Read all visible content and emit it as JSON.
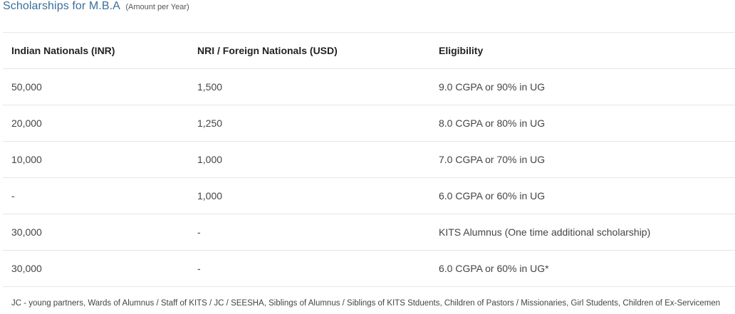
{
  "heading": {
    "title": "Scholarships for M.B.A",
    "subtitle": "(Amount per Year)"
  },
  "table": {
    "headers": [
      "Indian Nationals (INR)",
      "NRI / Foreign Nationals (USD)",
      "Eligibility"
    ],
    "rows": [
      [
        "50,000",
        "1,500",
        "9.0 CGPA or 90% in UG"
      ],
      [
        "20,000",
        "1,250",
        "8.0 CGPA or 80% in UG"
      ],
      [
        "10,000",
        "1,000",
        "7.0 CGPA or 70% in UG"
      ],
      [
        "-",
        "1,000",
        "6.0 CGPA or 60% in UG"
      ],
      [
        "30,000",
        "-",
        "KITS Alumnus (One time additional scholarship)"
      ],
      [
        "30,000",
        "-",
        "6.0 CGPA or 60% in UG*"
      ]
    ]
  },
  "footnote": "JC - young partners, Wards of Alumnus / Staff of KITS / JC / SEESHA, Siblings of Alumnus / Siblings of KITS Stduents, Children of Pastors / Missionaries, Girl Students, Children of Ex-Servicemen"
}
